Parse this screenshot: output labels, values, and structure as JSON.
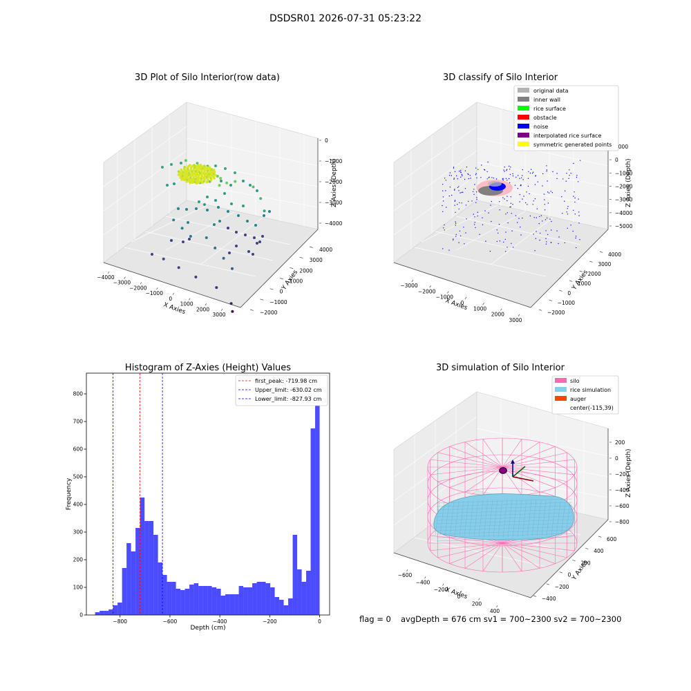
{
  "suptitle": "DSDSR01 2026-07-31 05:23:22",
  "footer": {
    "flag": "flag = 0",
    "stats": "avgDepth = 676 cm  sv1 = 700~2300  sv2 = 700~2300"
  },
  "chart_data": [
    {
      "type": "scatter",
      "projection": "3d",
      "title": "3D Plot of Silo Interior(row data)",
      "xlabel": "X Axies",
      "ylabel": "Y Axies",
      "zlabel": "Z Axies (Depth)",
      "x_ticks": [
        "−4000",
        "−3000",
        "−2000",
        "−1000",
        "0",
        "1000",
        "2000",
        "3000"
      ],
      "y_ticks": [
        "−2000",
        "−1000",
        "0",
        "1000",
        "2000",
        "3000",
        "4000"
      ],
      "z_ticks": [
        "0",
        "−1000",
        "−2000",
        "−3000",
        "−4000"
      ],
      "colormap": "viridis",
      "series": [
        {
          "points": [
            [
              -800,
              1800,
              -1000
            ],
            [
              -500,
              2200,
              -1050
            ],
            [
              -200,
              2000,
              -950
            ],
            [
              200,
              1900,
              -1000
            ],
            [
              -1000,
              1500,
              -1100
            ],
            [
              -600,
              1700,
              -1050
            ],
            [
              0,
              1600,
              -1000
            ],
            [
              400,
              2300,
              -1100
            ]
          ]
        },
        {
          "points": [
            [
              -2500,
              2600,
              -1100
            ],
            [
              -2000,
              2800,
              -1200
            ],
            [
              -1500,
              2900,
              -1250
            ],
            [
              1200,
              2600,
              -1300
            ],
            [
              1800,
              2300,
              -1500
            ],
            [
              2200,
              2000,
              -1800
            ]
          ]
        },
        {
          "points": [
            [
              -1800,
              500,
              -2500
            ],
            [
              -1200,
              300,
              -2600
            ],
            [
              -600,
              100,
              -2700
            ],
            [
              200,
              200,
              -2600
            ],
            [
              800,
              0,
              -2800
            ],
            [
              1400,
              -200,
              -3000
            ],
            [
              2000,
              -400,
              -3200
            ]
          ]
        },
        {
          "points": [
            [
              -1500,
              -800,
              -3500
            ],
            [
              -600,
              -900,
              -3600
            ],
            [
              400,
              -1000,
              -3700
            ],
            [
              1600,
              -1100,
              -3800
            ],
            [
              2600,
              -1400,
              -4100
            ],
            [
              2800,
              -1600,
              -4300
            ]
          ]
        }
      ]
    },
    {
      "type": "scatter",
      "projection": "3d",
      "title": "3D classify of Silo Interior",
      "xlabel": "X Axies",
      "ylabel": "Y Axies",
      "zlabel": "Z Axies (Depth)",
      "x_ticks": [
        "−3000",
        "−2000",
        "−1000",
        "0",
        "1000",
        "2000",
        "3000"
      ],
      "y_ticks": [
        "−2000",
        "−1000",
        "0",
        "1000",
        "2000",
        "3000",
        "4000"
      ],
      "z_ticks": [
        "1000",
        "0",
        "−1000",
        "−2000",
        "−3000",
        "−4000",
        "−5000"
      ],
      "legend_position": "top-right",
      "legend": [
        {
          "label": "original data",
          "color": "#b3b3b3"
        },
        {
          "label": "inner wall",
          "color": "#808080"
        },
        {
          "label": "rice surface",
          "color": "#00ff00"
        },
        {
          "label": "obstacle",
          "color": "#ff0000"
        },
        {
          "label": "noise",
          "color": "#0000ff"
        },
        {
          "label": "interpolated rice surface",
          "color": "#800080"
        },
        {
          "label": "symmetric generated points",
          "color": "#ffff00"
        }
      ]
    },
    {
      "type": "bar",
      "title": "Histogram of Z-Axies (Height) Values",
      "xlabel": "Depth (cm)",
      "ylabel": "Frequency",
      "xlim": [
        -935,
        40
      ],
      "ylim": [
        0,
        875
      ],
      "x_ticks": [
        -800,
        -600,
        -400,
        -200,
        0
      ],
      "y_ticks": [
        0,
        100,
        200,
        300,
        400,
        500,
        600,
        700,
        800
      ],
      "bin_start": -900,
      "bin_width": 18,
      "color": "#0000ff",
      "values": [
        10,
        15,
        15,
        20,
        35,
        45,
        170,
        260,
        230,
        315,
        425,
        340,
        340,
        290,
        190,
        145,
        120,
        120,
        95,
        90,
        95,
        110,
        115,
        105,
        105,
        105,
        100,
        95,
        70,
        75,
        75,
        75,
        105,
        100,
        100,
        115,
        120,
        120,
        115,
        100,
        65,
        55,
        35,
        60,
        290,
        165,
        120,
        160,
        675,
        830
      ],
      "vlines": [
        {
          "label": "first_peak: -719.98 cm",
          "x": -719.98,
          "color": "#ff0000"
        },
        {
          "label": "Upper_limit: -630.02 cm",
          "x": -630.02,
          "color": "#0000ff"
        },
        {
          "label": "Lower_limit: -827.93 cm",
          "x": -827.93,
          "color": "#0000ff"
        }
      ],
      "legend_position": "top-right"
    },
    {
      "type": "surface",
      "projection": "3d",
      "title": "3D simulation of Silo Interior",
      "xlabel": "X Axies",
      "ylabel": "Y Axies",
      "zlabel": "Z Axies (Depth)",
      "x_ticks": [
        "−600",
        "−400",
        "−200",
        "0",
        "200",
        "400"
      ],
      "y_ticks": [
        "−400",
        "−200",
        "0",
        "200",
        "400",
        "600"
      ],
      "z_ticks": [
        "200",
        "0",
        "−200",
        "−400",
        "−600",
        "−800"
      ],
      "legend_position": "top-right",
      "legend": [
        {
          "label": "silo",
          "color": "#ff69b4"
        },
        {
          "label": "rice simulation",
          "color": "#87ceeb"
        },
        {
          "label": "auger",
          "color": "#ff4500"
        },
        {
          "label": "center(-115,39)",
          "color": ""
        }
      ]
    }
  ]
}
